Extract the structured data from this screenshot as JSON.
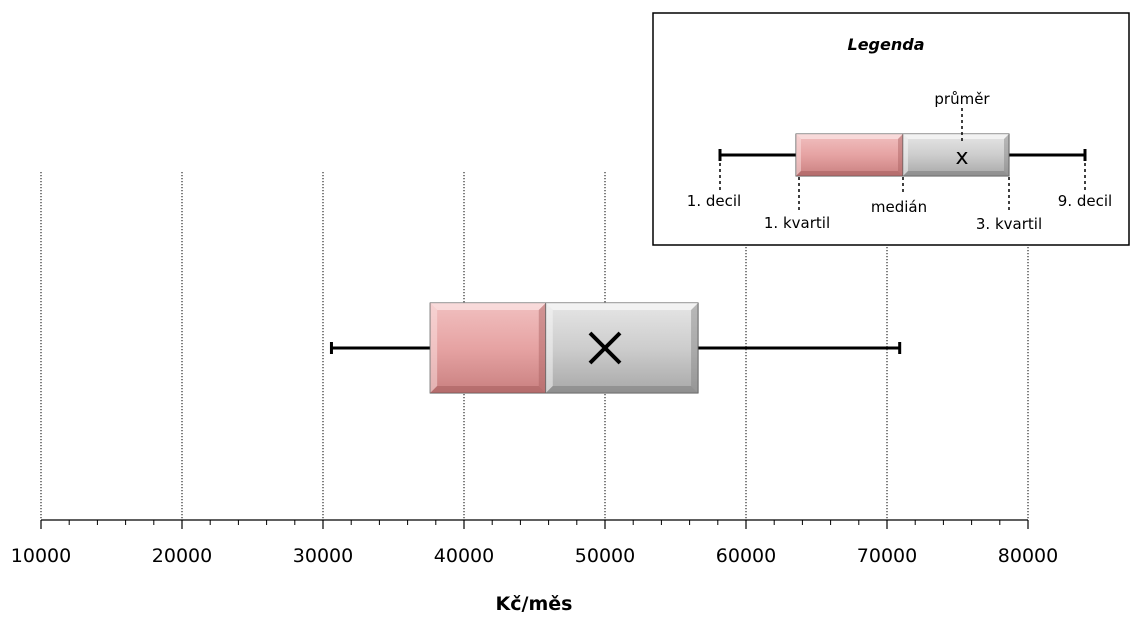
{
  "chart_data": {
    "type": "boxplot",
    "xlabel": "Kč/měs",
    "xlim": [
      10000,
      80000
    ],
    "xticks": [
      10000,
      20000,
      30000,
      40000,
      50000,
      60000,
      70000,
      80000
    ],
    "minor_ticks_per_major": 5,
    "grid": "vertical dotted",
    "box": {
      "decile_1": 30600,
      "quartile_1": 37600,
      "median": 45800,
      "mean": 50000,
      "quartile_3": 56600,
      "decile_9": 70900
    },
    "colors": {
      "lower_box": "#e6a3a3",
      "upper_box": "#c8c8c8",
      "whisker": "#000000",
      "grid": "#000000"
    },
    "legend": {
      "title": "Legenda",
      "placement": "top-right",
      "labels": {
        "mean": "průměr",
        "decile_1": "1. decil",
        "quartile_1": "1. kvartil",
        "median": "medián",
        "quartile_3": "3. kvartil",
        "decile_9": "9. decil"
      },
      "mean_marker": "x"
    }
  }
}
